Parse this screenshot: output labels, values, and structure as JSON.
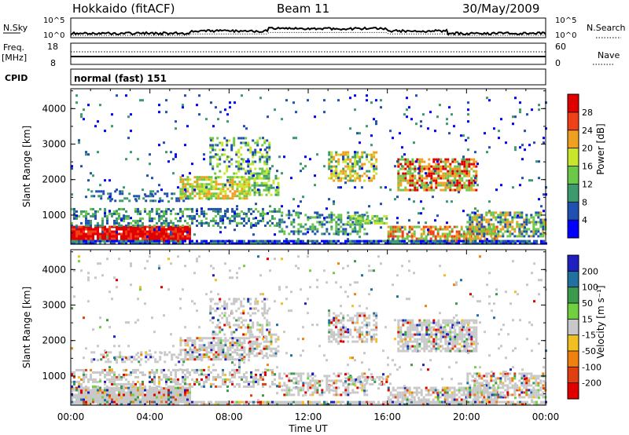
{
  "header": {
    "radar": "Hokkaido (fitACF)",
    "beam": "Beam 11",
    "date": "30/May/2009"
  },
  "noise_panel": {
    "left_label": "N.Sky",
    "right_label": "N.Search",
    "tick_top": "10^5",
    "tick_bottom": "10^0"
  },
  "freq_panel": {
    "label_line1": "Freq.",
    "label_line2": "[MHz]",
    "tick_top": "18",
    "tick_bottom": "8",
    "right_label": "Nave",
    "right_tick_top": "60",
    "right_tick_bottom": "0"
  },
  "cpid_panel": {
    "label": "CPID",
    "value": "normal (fast) 151"
  },
  "x_axis": {
    "label": "Time UT",
    "ticks": [
      "00:00",
      "04:00",
      "08:00",
      "12:00",
      "16:00",
      "20:00",
      "00:00"
    ]
  },
  "chart_data": [
    {
      "type": "heatmap",
      "name": "power",
      "ylabel": "Slant Range [km]",
      "yticks": [
        "1000",
        "2000",
        "3000",
        "4000"
      ],
      "ylim": [
        180,
        4560
      ],
      "xlim": [
        0,
        24
      ],
      "colorbar": {
        "label": "Power [dB]",
        "ticks": [
          "4",
          "8",
          "12",
          "16",
          "20",
          "24",
          "28"
        ],
        "colors": [
          "#0000ff",
          "#2050b0",
          "#3c9a6c",
          "#6cc848",
          "#c8e62c",
          "#f0a020",
          "#f04018",
          "#e00000"
        ]
      }
    },
    {
      "type": "heatmap",
      "name": "velocity",
      "ylabel": "Slant Range [km]",
      "yticks": [
        "1000",
        "2000",
        "3000",
        "4000"
      ],
      "ylim": [
        180,
        4560
      ],
      "xlim": [
        0,
        24
      ],
      "colorbar": {
        "label": "Velocity [m s⁻¹]",
        "ticks": [
          "200",
          "100",
          "50",
          "15",
          "-15",
          "-50",
          "-100",
          "-200"
        ],
        "colors": [
          "#2020c0",
          "#2070a0",
          "#3c9a4c",
          "#70d040",
          "#c8c8c8",
          "#f0c020",
          "#f08010",
          "#e04010",
          "#e00000"
        ]
      }
    }
  ]
}
